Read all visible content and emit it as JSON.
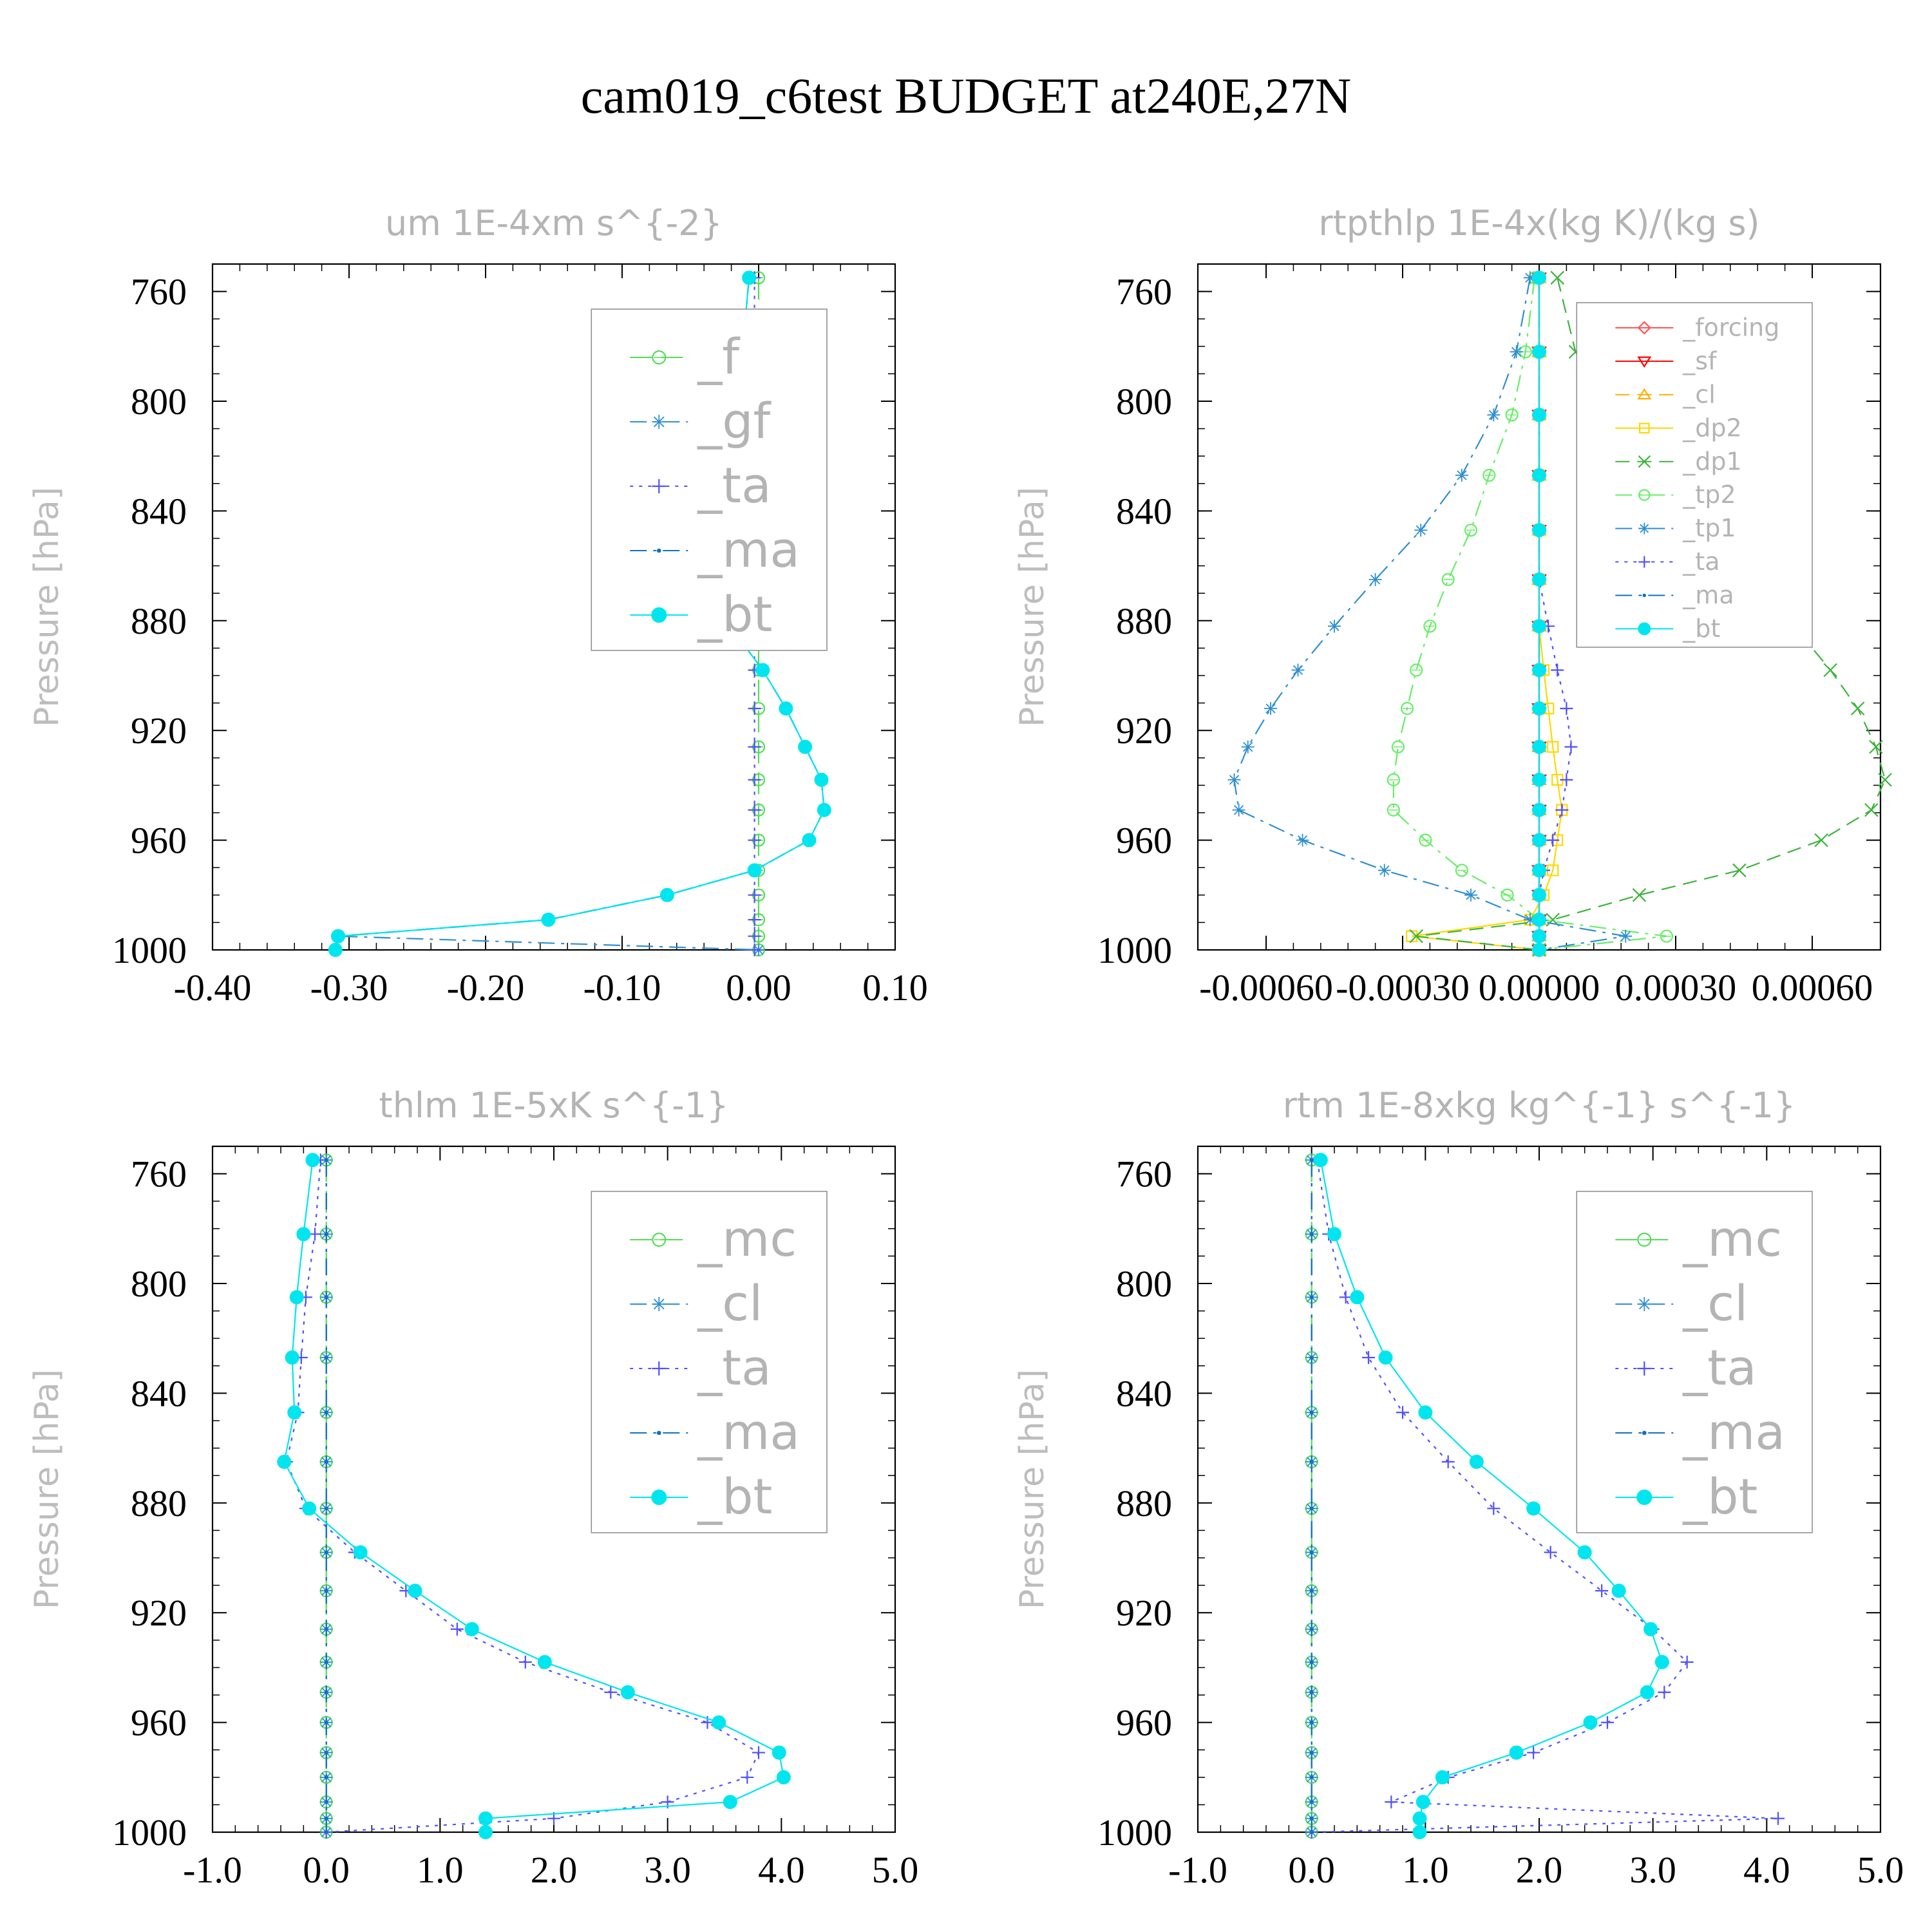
{
  "chart_data": {
    "title": "cam019_c6test  BUDGET at240E,27N",
    "panels": [
      {
        "id": "um",
        "type": "line",
        "title": "um  1E-4xm s^{-2}",
        "ylabel": "Pressure [hPa]",
        "xlim": [
          -0.4,
          0.1
        ],
        "ylim": [
          1000,
          750
        ],
        "xticks": [
          "-0.40",
          "-0.30",
          "-0.20",
          "-0.10",
          "0.00",
          "0.10"
        ],
        "xtick_values": [
          -0.4,
          -0.3,
          -0.2,
          -0.1,
          0.0,
          0.1
        ],
        "yticks": [
          "760",
          "800",
          "840",
          "880",
          "920",
          "960",
          "1000"
        ],
        "ytick_values": [
          760,
          800,
          840,
          880,
          920,
          960,
          1000
        ],
        "legend_size": "large",
        "levels": [
          755,
          782,
          805,
          827,
          847,
          865,
          882,
          898,
          912,
          926,
          938,
          949,
          960,
          971,
          980,
          989,
          995,
          1000
        ],
        "series": [
          {
            "name": "_f",
            "color": "#55dd55",
            "marker": "circle-open",
            "dash": "long",
            "values": [
              0,
              0,
              0,
              0,
              0,
              0,
              0,
              0,
              0,
              0,
              0,
              0,
              0,
              0,
              0,
              0,
              0,
              0
            ]
          },
          {
            "name": "_gf",
            "color": "#2f8fd0",
            "marker": "asterisk",
            "dash": "dashdot",
            "values": [
              -0.007,
              -0.012,
              -0.018,
              -0.026,
              -0.031,
              -0.03,
              -0.021,
              0.003,
              0.02,
              0.034,
              0.046,
              0.048,
              0.037,
              -0.003,
              -0.067,
              -0.154,
              -0.308,
              0.0
            ]
          },
          {
            "name": "_ta",
            "color": "#5050ff",
            "marker": "plus",
            "dash": "dotted",
            "values": [
              -0.003,
              -0.003,
              -0.003,
              -0.003,
              -0.003,
              -0.003,
              -0.003,
              -0.003,
              -0.003,
              -0.003,
              -0.003,
              -0.003,
              -0.003,
              -0.003,
              -0.003,
              -0.003,
              -0.003,
              -0.003
            ]
          },
          {
            "name": "_ma",
            "color": "#1070c0",
            "marker": "dot",
            "dash": "dashdot",
            "values": [
              -0.007,
              -0.012,
              -0.018,
              -0.026,
              -0.031,
              -0.03,
              -0.021,
              0.003,
              0.02,
              0.034,
              0.046,
              0.048,
              0.037,
              -0.003,
              -0.067,
              -0.154,
              -0.308,
              -0.31
            ]
          },
          {
            "name": "_bt",
            "color": "#00e5ee",
            "marker": "filled-circle",
            "dash": "solid",
            "values": [
              -0.007,
              -0.012,
              -0.018,
              -0.026,
              -0.031,
              -0.03,
              -0.021,
              0.003,
              0.02,
              0.034,
              0.046,
              0.048,
              0.037,
              -0.003,
              -0.067,
              -0.154,
              -0.308,
              -0.31
            ]
          }
        ]
      },
      {
        "id": "rtpthlp",
        "type": "line",
        "title": "rtpthlp  1E-4x(kg K)/(kg s)",
        "ylabel": "Pressure [hPa]",
        "xlim": [
          -0.00075,
          0.00075
        ],
        "ylim": [
          1000,
          750
        ],
        "xticks": [
          "-0.00060",
          "-0.00030",
          "0.00000",
          "0.00030",
          "0.00060"
        ],
        "xtick_values": [
          -0.0006,
          -0.0003,
          0.0,
          0.0003,
          0.0006
        ],
        "yticks": [
          "760",
          "800",
          "840",
          "880",
          "920",
          "960",
          "1000"
        ],
        "ytick_values": [
          760,
          800,
          840,
          880,
          920,
          960,
          1000
        ],
        "legend_size": "small",
        "levels": [
          755,
          782,
          805,
          827,
          847,
          865,
          882,
          898,
          912,
          926,
          938,
          949,
          960,
          971,
          980,
          989,
          995,
          1000
        ],
        "series": [
          {
            "name": "_forcing",
            "color": "#ff5555",
            "marker": "diamond-open",
            "dash": "solid",
            "values": [
              0,
              0,
              0,
              0,
              0,
              0,
              0,
              0,
              0,
              0,
              0,
              0,
              0,
              0,
              0,
              0,
              0,
              0
            ]
          },
          {
            "name": "_sf",
            "color": "#ff0000",
            "marker": "triangle-down",
            "dash": "solid",
            "values": [
              0,
              0,
              0,
              0,
              0,
              0,
              0,
              0,
              0,
              0,
              0,
              0,
              0,
              0,
              0,
              0,
              0,
              0
            ]
          },
          {
            "name": "_cl",
            "color": "#ffb000",
            "marker": "triangle-up",
            "dash": "dashed",
            "values": [
              0,
              0,
              0,
              0,
              0,
              0,
              0,
              0,
              0,
              0,
              0,
              0,
              0,
              0,
              0,
              0,
              0,
              0
            ]
          },
          {
            "name": "_dp2",
            "color": "#ffd700",
            "marker": "square-open",
            "dash": "solid",
            "values": [
              0.0,
              0.0,
              0.0,
              0.0,
              0.0,
              0.0,
              0.0,
              1e-05,
              2e-05,
              3e-05,
              4e-05,
              5e-05,
              4e-05,
              3e-05,
              1e-05,
              -2e-05,
              -0.00028,
              0.0
            ]
          },
          {
            "name": "_dp1",
            "color": "#3cb43c",
            "marker": "x",
            "dash": "dashed",
            "values": [
              4e-05,
              8e-05,
              0.00016,
              0.00027,
              0.00036,
              0.00046,
              0.00056,
              0.00064,
              0.0007,
              0.00074,
              0.00076,
              0.00073,
              0.00062,
              0.00044,
              0.00022,
              3e-05,
              -0.00027,
              0.0
            ]
          },
          {
            "name": "_tp2",
            "color": "#66ee66",
            "marker": "circle-open",
            "dash": "dashdot",
            "values": [
              -1e-05,
              -3e-05,
              -6e-05,
              -0.00011,
              -0.00015,
              -0.0002,
              -0.00024,
              -0.00027,
              -0.00029,
              -0.00031,
              -0.00032,
              -0.00032,
              -0.00025,
              -0.00017,
              -7e-05,
              0.0,
              0.00028,
              0.0
            ]
          },
          {
            "name": "_tp1",
            "color": "#2f8fd0",
            "marker": "asterisk",
            "dash": "dashdot",
            "values": [
              -2e-05,
              -5e-05,
              -0.0001,
              -0.00017,
              -0.00026,
              -0.00036,
              -0.00045,
              -0.00053,
              -0.00059,
              -0.00064,
              -0.00067,
              -0.00066,
              -0.00052,
              -0.00034,
              -0.00015,
              -2e-05,
              0.00019,
              0.0
            ]
          },
          {
            "name": "_ta",
            "color": "#5050ff",
            "marker": "plus",
            "dash": "dotted",
            "values": [
              0.0,
              0.0,
              0.0,
              0.0,
              0.0,
              0.0,
              2e-05,
              4e-05,
              6e-05,
              7e-05,
              6e-05,
              5e-05,
              3e-05,
              1e-05,
              0.0,
              0.0,
              0.0,
              0.0
            ]
          },
          {
            "name": "_ma",
            "color": "#1070c0",
            "marker": "dot",
            "dash": "dashdot",
            "values": [
              0,
              0,
              0,
              0,
              0,
              0,
              0,
              0,
              0,
              0,
              0,
              0,
              0,
              0,
              0,
              0,
              0,
              0
            ]
          },
          {
            "name": "_bt",
            "color": "#00e5ee",
            "marker": "filled-circle",
            "dash": "solid",
            "values": [
              0,
              0,
              0,
              0,
              0,
              0,
              0,
              0,
              0,
              0,
              0,
              0,
              0,
              0,
              0,
              0,
              0,
              0
            ]
          }
        ]
      },
      {
        "id": "thlm",
        "type": "line",
        "title": "thlm  1E-5xK s^{-1}",
        "ylabel": "Pressure [hPa]",
        "xlim": [
          -1.0,
          5.0
        ],
        "ylim": [
          1000,
          750
        ],
        "xticks": [
          "-1.0",
          "0.0",
          "1.0",
          "2.0",
          "3.0",
          "4.0",
          "5.0"
        ],
        "xtick_values": [
          -1.0,
          0.0,
          1.0,
          2.0,
          3.0,
          4.0,
          5.0
        ],
        "yticks": [
          "760",
          "800",
          "840",
          "880",
          "920",
          "960",
          "1000"
        ],
        "ytick_values": [
          760,
          800,
          840,
          880,
          920,
          960,
          1000
        ],
        "legend_size": "large",
        "levels": [
          755,
          782,
          805,
          827,
          847,
          865,
          882,
          898,
          912,
          926,
          938,
          949,
          960,
          971,
          980,
          989,
          995,
          1000
        ],
        "series": [
          {
            "name": "_mc",
            "color": "#55dd55",
            "marker": "circle-open",
            "dash": "long",
            "values": [
              0,
              0,
              0,
              0,
              0,
              0,
              0,
              0,
              0,
              0,
              0,
              0,
              0,
              0,
              0,
              0,
              0,
              0
            ]
          },
          {
            "name": "_cl",
            "color": "#2f8fd0",
            "marker": "asterisk",
            "dash": "dashdot",
            "values": [
              0,
              0,
              0,
              0,
              0,
              0,
              0,
              0,
              0,
              0,
              0,
              0,
              0,
              0,
              0,
              0,
              0,
              0
            ]
          },
          {
            "name": "_ta",
            "color": "#5050ff",
            "marker": "plus",
            "dash": "dotted",
            "values": [
              -0.05,
              -0.1,
              -0.18,
              -0.22,
              -0.25,
              -0.35,
              -0.18,
              0.25,
              0.7,
              1.15,
              1.75,
              2.5,
              3.35,
              3.8,
              3.7,
              3.0,
              2.0,
              0.0
            ]
          },
          {
            "name": "_ma",
            "color": "#1070c0",
            "marker": "dot",
            "dash": "dashdot",
            "values": [
              0,
              0,
              0,
              0,
              0,
              0,
              0,
              0,
              0,
              0,
              0,
              0,
              0,
              0,
              0,
              0,
              0,
              0
            ]
          },
          {
            "name": "_bt",
            "color": "#00e5ee",
            "marker": "filled-circle",
            "dash": "solid",
            "values": [
              -0.12,
              -0.2,
              -0.26,
              -0.3,
              -0.28,
              -0.37,
              -0.15,
              0.3,
              0.78,
              1.28,
              1.92,
              2.65,
              3.45,
              3.98,
              4.02,
              3.55,
              1.4,
              1.4
            ]
          }
        ]
      },
      {
        "id": "rtm",
        "type": "line",
        "title": "rtm  1E-8xkg kg^{-1} s^{-1}",
        "ylabel": "Pressure [hPa]",
        "xlim": [
          -1.0,
          5.0
        ],
        "ylim": [
          1000,
          750
        ],
        "xticks": [
          "-1.0",
          "0.0",
          "1.0",
          "2.0",
          "3.0",
          "4.0",
          "5.0"
        ],
        "xtick_values": [
          -1.0,
          0.0,
          1.0,
          2.0,
          3.0,
          4.0,
          5.0
        ],
        "yticks": [
          "760",
          "800",
          "840",
          "880",
          "920",
          "960",
          "1000"
        ],
        "ytick_values": [
          760,
          800,
          840,
          880,
          920,
          960,
          1000
        ],
        "legend_size": "large",
        "levels": [
          755,
          782,
          805,
          827,
          847,
          865,
          882,
          898,
          912,
          926,
          938,
          949,
          960,
          971,
          980,
          989,
          995,
          1000
        ],
        "series": [
          {
            "name": "_mc",
            "color": "#55dd55",
            "marker": "circle-open",
            "dash": "long",
            "values": [
              0,
              0,
              0,
              0,
              0,
              0,
              0,
              0,
              0,
              0,
              0,
              0,
              0,
              0,
              0,
              0,
              0,
              0
            ]
          },
          {
            "name": "_cl",
            "color": "#2f8fd0",
            "marker": "asterisk",
            "dash": "dashdot",
            "values": [
              0,
              0,
              0,
              0,
              0,
              0,
              0,
              0,
              0,
              0,
              0,
              0,
              0,
              0,
              0,
              0,
              0,
              0
            ]
          },
          {
            "name": "_ta",
            "color": "#5050ff",
            "marker": "plus",
            "dash": "dotted",
            "values": [
              0.05,
              0.15,
              0.3,
              0.5,
              0.8,
              1.2,
              1.6,
              2.1,
              2.55,
              3.0,
              3.3,
              3.1,
              2.6,
              1.95,
              1.2,
              0.7,
              4.1,
              0.0
            ]
          },
          {
            "name": "_ma",
            "color": "#1070c0",
            "marker": "dot",
            "dash": "dashdot",
            "values": [
              0,
              0,
              0,
              0,
              0,
              0,
              0,
              0,
              0,
              0,
              0,
              0,
              0,
              0,
              0,
              0,
              0,
              0
            ]
          },
          {
            "name": "_bt",
            "color": "#00e5ee",
            "marker": "filled-circle",
            "dash": "solid",
            "values": [
              0.08,
              0.2,
              0.4,
              0.65,
              1.0,
              1.45,
              1.95,
              2.4,
              2.7,
              2.98,
              3.08,
              2.95,
              2.45,
              1.8,
              1.15,
              0.98,
              0.95,
              0.95
            ]
          }
        ]
      }
    ]
  }
}
